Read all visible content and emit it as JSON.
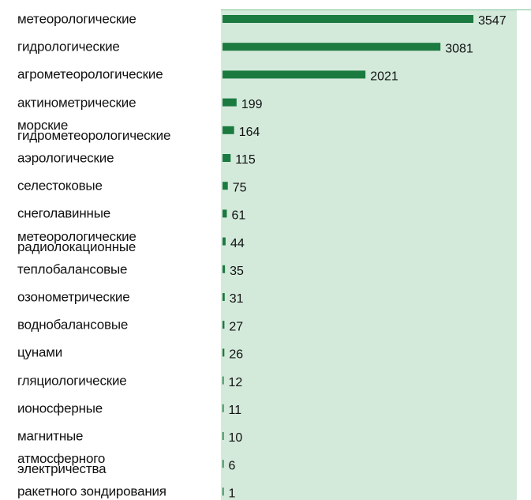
{
  "chart_data": {
    "type": "bar",
    "orientation": "horizontal",
    "color": "#1b7a3f",
    "categories": [
      "метеорологические",
      "гидрологические",
      "агрометеорологические",
      "актинометрические",
      "морские\nгидрометеорологические",
      "аэрологические",
      "селестоковые",
      "снеголавинные",
      "метеорологические\nрадиолокационные",
      "теплобалансовые",
      "озонометрические",
      "воднобалансовые",
      "цунами",
      "гляциологические",
      "ионосферные",
      "магнитные",
      "атмосферного\nэлектричества",
      "ракетного зондирования"
    ],
    "values": [
      3547,
      3081,
      2021,
      199,
      164,
      115,
      75,
      61,
      44,
      35,
      31,
      27,
      26,
      12,
      11,
      10,
      6,
      1
    ]
  }
}
